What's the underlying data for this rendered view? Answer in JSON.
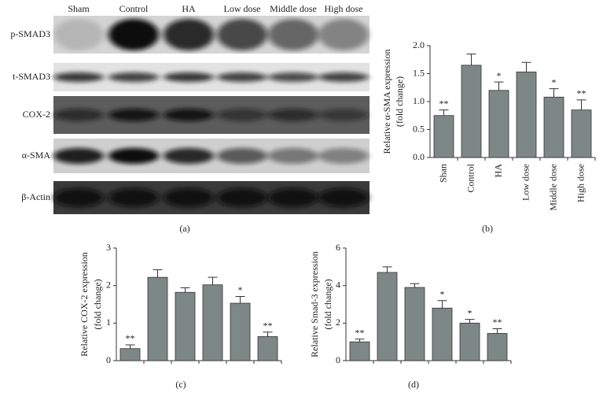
{
  "blot": {
    "lanes": [
      "Sham",
      "Control",
      "HA",
      "Low dose",
      "Middle dose",
      "High dose"
    ],
    "proteins": [
      "p-SMAD3",
      "t-SMAD3",
      "COX-2",
      "α-SMA",
      "β-Actin"
    ],
    "panel_label": "(a)"
  },
  "chart_data": [
    {
      "type": "bar",
      "panel_label": "(b)",
      "y_label": [
        "Relative α-SMA expression",
        "(fold change)"
      ],
      "categories": [
        "Shan",
        "Control",
        "HA",
        "Low dose",
        "Middle dose",
        "High dose"
      ],
      "values": [
        0.75,
        1.65,
        1.2,
        1.53,
        1.08,
        0.85
      ],
      "errors": [
        0.1,
        0.2,
        0.15,
        0.17,
        0.15,
        0.18
      ],
      "annotations": [
        "**",
        null,
        "*",
        null,
        "*",
        "**"
      ],
      "color": "#7d8886",
      "ylim": [
        0,
        2
      ],
      "yticks": [
        {
          "value": 0,
          "label": "0.0"
        },
        {
          "value": 0.5,
          "label": "0.5"
        },
        {
          "value": 1,
          "label": "1.0"
        },
        {
          "value": 1.5,
          "label": "1.5"
        },
        {
          "value": 2,
          "label": "2.0"
        }
      ]
    },
    {
      "type": "bar",
      "panel_label": "(c)",
      "y_label": [
        "Relative COX-2 expression",
        "(fold change)"
      ],
      "categories": [
        null,
        null,
        null,
        null,
        null,
        null
      ],
      "values": [
        0.32,
        2.22,
        1.82,
        2.02,
        1.53,
        0.64
      ],
      "errors": [
        0.1,
        0.2,
        0.12,
        0.2,
        0.18,
        0.12
      ],
      "annotations": [
        "**",
        null,
        null,
        null,
        "*",
        "**"
      ],
      "color": "#7d8886",
      "ylim": [
        0,
        3
      ],
      "yticks": [
        0,
        1,
        2,
        3
      ]
    },
    {
      "type": "bar",
      "panel_label": "(d)",
      "y_label": [
        "Relative Smad-3 expression",
        "(fold change)"
      ],
      "categories": [
        null,
        null,
        null,
        null,
        null,
        null
      ],
      "values": [
        1.0,
        4.7,
        3.9,
        2.8,
        2.0,
        1.45
      ],
      "errors": [
        0.15,
        0.3,
        0.2,
        0.4,
        0.2,
        0.25
      ],
      "annotations": [
        "**",
        null,
        null,
        "*",
        "*",
        "**"
      ],
      "color": "#7d8886",
      "ylim": [
        0,
        6
      ],
      "yticks": [
        0,
        2,
        4,
        6
      ]
    }
  ]
}
